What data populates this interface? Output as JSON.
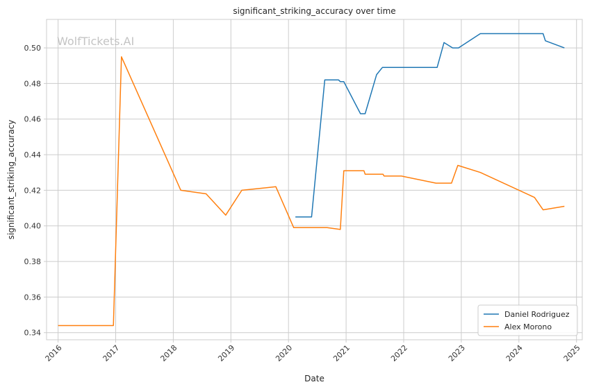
{
  "chart_data": {
    "type": "line",
    "title": "significant_striking_accuracy over time",
    "xlabel": "Date",
    "ylabel": "significant_striking_accuracy",
    "watermark": "WolfTickets.AI",
    "grid": true,
    "legend_position": "bottom-right",
    "xlim": [
      2015.8,
      2025.1
    ],
    "ylim": [
      0.336,
      0.516
    ],
    "x_ticks": [
      "2016",
      "2017",
      "2018",
      "2019",
      "2020",
      "2021",
      "2022",
      "2023",
      "2024",
      "2025"
    ],
    "y_ticks": [
      "0.34",
      "0.36",
      "0.38",
      "0.40",
      "0.42",
      "0.44",
      "0.46",
      "0.48",
      "0.50"
    ],
    "series": [
      {
        "name": "Daniel Rodriguez",
        "color": "#1f77b4",
        "points": [
          [
            2020.12,
            0.405
          ],
          [
            2020.4,
            0.405
          ],
          [
            2020.63,
            0.482
          ],
          [
            2020.87,
            0.482
          ],
          [
            2020.9,
            0.481
          ],
          [
            2020.96,
            0.481
          ],
          [
            2021.25,
            0.463
          ],
          [
            2021.33,
            0.463
          ],
          [
            2021.53,
            0.485
          ],
          [
            2021.63,
            0.489
          ],
          [
            2022.58,
            0.489
          ],
          [
            2022.7,
            0.503
          ],
          [
            2022.85,
            0.5
          ],
          [
            2022.95,
            0.5
          ],
          [
            2023.33,
            0.508
          ],
          [
            2024.42,
            0.508
          ],
          [
            2024.46,
            0.504
          ],
          [
            2024.79,
            0.5
          ]
        ]
      },
      {
        "name": "Alex Morono",
        "color": "#ff7f0e",
        "points": [
          [
            2016.0,
            0.344
          ],
          [
            2016.96,
            0.344
          ],
          [
            2017.1,
            0.495
          ],
          [
            2018.13,
            0.42
          ],
          [
            2018.57,
            0.418
          ],
          [
            2018.91,
            0.406
          ],
          [
            2019.19,
            0.42
          ],
          [
            2019.78,
            0.422
          ],
          [
            2020.09,
            0.399
          ],
          [
            2020.67,
            0.399
          ],
          [
            2020.9,
            0.398
          ],
          [
            2020.96,
            0.431
          ],
          [
            2021.31,
            0.431
          ],
          [
            2021.33,
            0.429
          ],
          [
            2021.64,
            0.429
          ],
          [
            2021.66,
            0.428
          ],
          [
            2021.96,
            0.428
          ],
          [
            2022.56,
            0.424
          ],
          [
            2022.83,
            0.424
          ],
          [
            2022.94,
            0.434
          ],
          [
            2023.33,
            0.43
          ],
          [
            2024.27,
            0.416
          ],
          [
            2024.42,
            0.409
          ],
          [
            2024.79,
            0.411
          ]
        ]
      }
    ]
  }
}
